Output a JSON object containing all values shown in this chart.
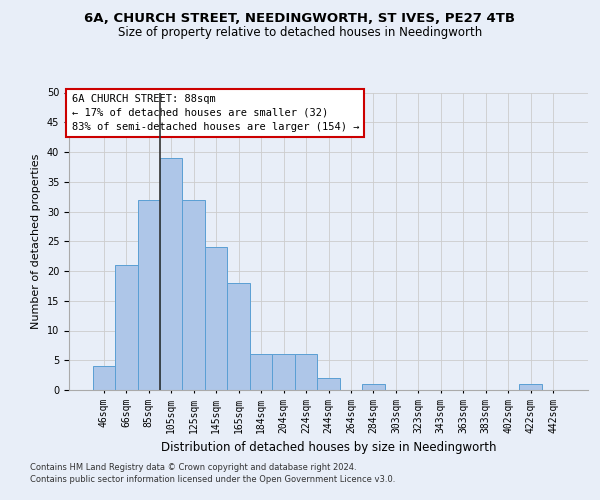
{
  "title1": "6A, CHURCH STREET, NEEDINGWORTH, ST IVES, PE27 4TB",
  "title2": "Size of property relative to detached houses in Needingworth",
  "xlabel": "Distribution of detached houses by size in Needingworth",
  "ylabel": "Number of detached properties",
  "categories": [
    "46sqm",
    "66sqm",
    "85sqm",
    "105sqm",
    "125sqm",
    "145sqm",
    "165sqm",
    "184sqm",
    "204sqm",
    "224sqm",
    "244sqm",
    "264sqm",
    "284sqm",
    "303sqm",
    "323sqm",
    "343sqm",
    "363sqm",
    "383sqm",
    "402sqm",
    "422sqm",
    "442sqm"
  ],
  "values": [
    4,
    21,
    32,
    39,
    32,
    24,
    18,
    6,
    6,
    6,
    2,
    0,
    1,
    0,
    0,
    0,
    0,
    0,
    0,
    1,
    0
  ],
  "bar_color": "#aec6e8",
  "bar_edge_color": "#5a9fd4",
  "grid_color": "#cccccc",
  "vline_color": "#333333",
  "vline_x_index": 2.5,
  "annotation_box_text": "6A CHURCH STREET: 88sqm\n← 17% of detached houses are smaller (32)\n83% of semi-detached houses are larger (154) →",
  "annotation_box_color": "#ffffff",
  "annotation_box_edge_color": "#cc0000",
  "footnote1": "Contains HM Land Registry data © Crown copyright and database right 2024.",
  "footnote2": "Contains public sector information licensed under the Open Government Licence v3.0.",
  "ylim": [
    0,
    50
  ],
  "yticks": [
    0,
    5,
    10,
    15,
    20,
    25,
    30,
    35,
    40,
    45,
    50
  ],
  "background_color": "#e8eef8",
  "title1_fontsize": 9.5,
  "title2_fontsize": 8.5,
  "ylabel_fontsize": 8,
  "xlabel_fontsize": 8.5,
  "tick_fontsize": 7,
  "annot_fontsize": 7.5
}
